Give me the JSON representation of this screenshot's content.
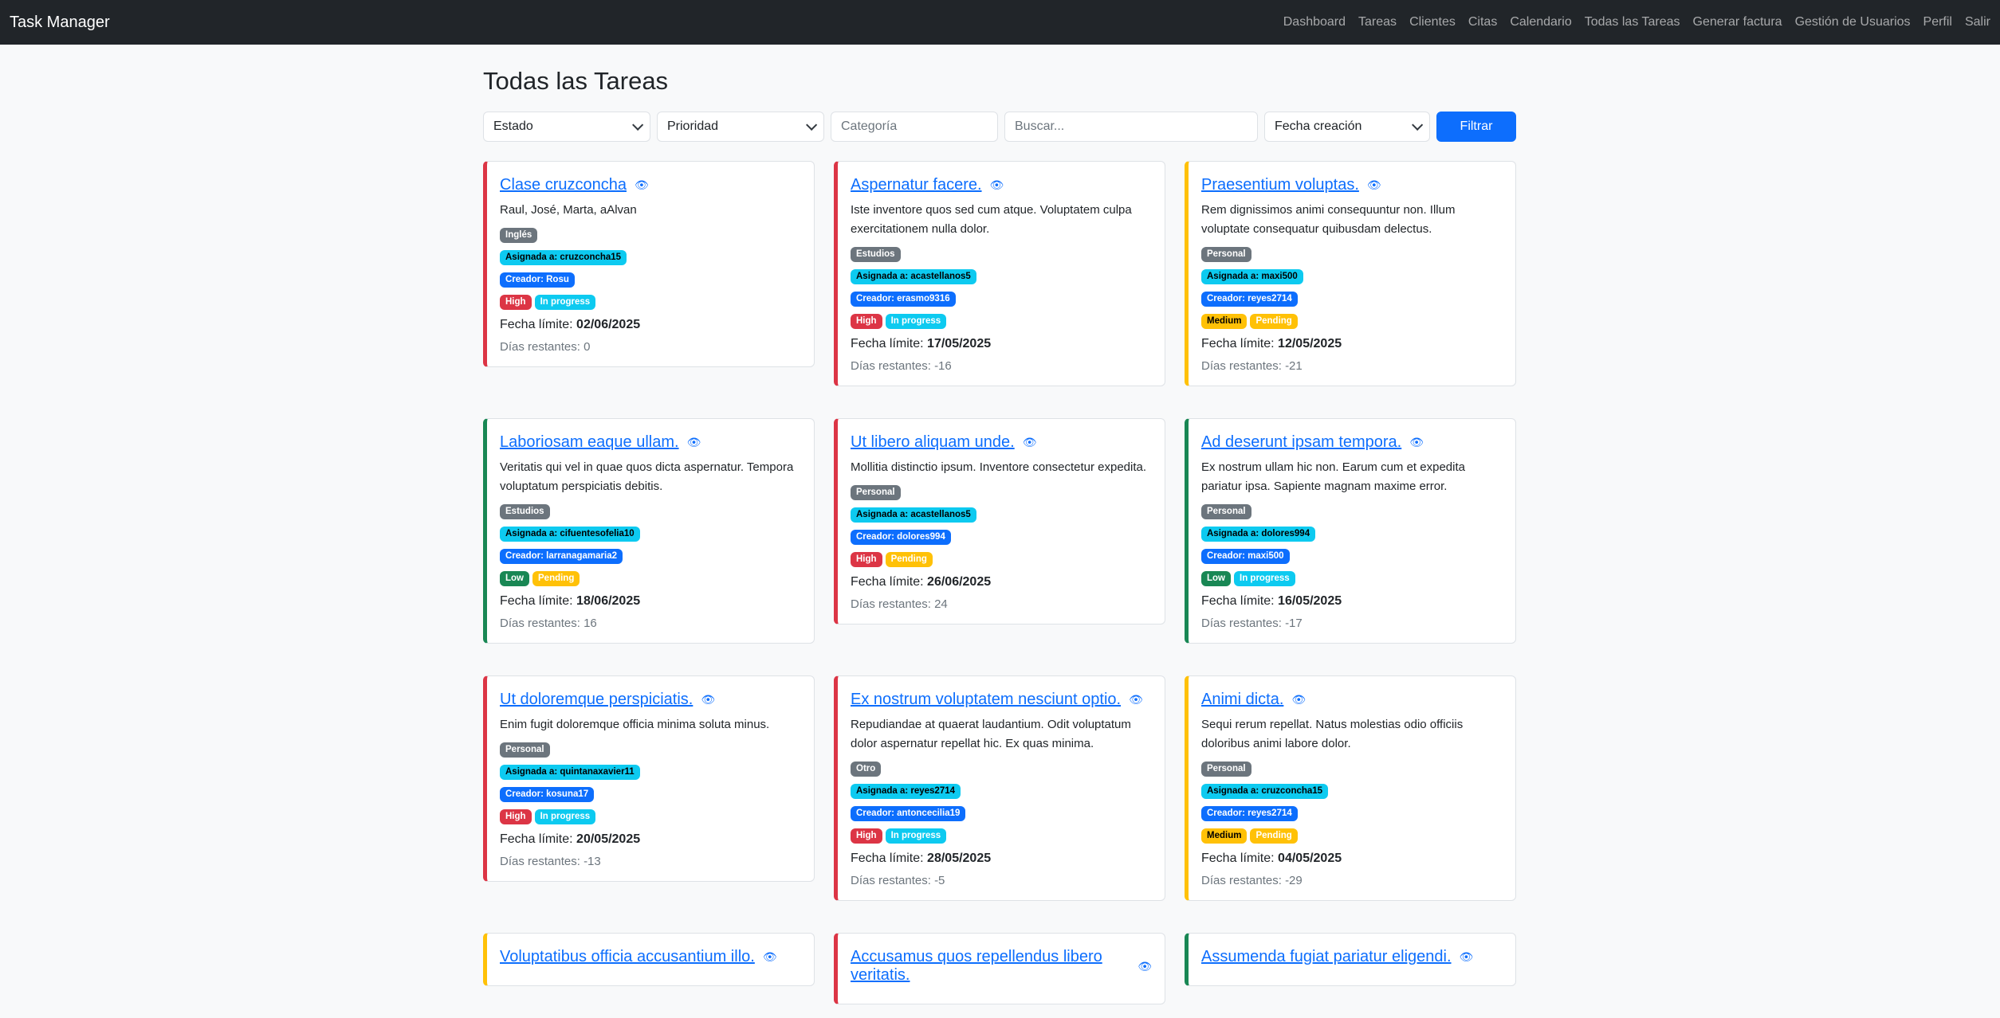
{
  "nav": {
    "brand": "Task Manager",
    "links": [
      "Dashboard",
      "Tareas",
      "Clientes",
      "Citas",
      "Calendario",
      "Todas las Tareas",
      "Generar factura",
      "Gestión de Usuarios",
      "Perfil",
      "Salir"
    ]
  },
  "page": {
    "title": "Todas las Tareas"
  },
  "filters": {
    "estado": "Estado",
    "prioridad": "Prioridad",
    "categoria_placeholder": "Categoría",
    "buscar_placeholder": "Buscar...",
    "orden": "Fecha creación",
    "button": "Filtrar"
  },
  "labels": {
    "fecha_limite": "Fecha límite:",
    "dias_restantes": "Días restantes:"
  },
  "colors": {
    "high": "#dc3545",
    "medium": "#ffc107",
    "low": "#198754",
    "primary": "#0d6efd",
    "info": "#0dcaf0",
    "secondary": "#6c757d"
  },
  "tasks": [
    {
      "title": "Clase cruzconcha",
      "description": "Raul, José, Marta, aAlvan",
      "category": "Inglés",
      "assigned": "Asignada a: cruzconcha15",
      "creator": "Creador: Rosu",
      "priority": "High",
      "status": "In progress",
      "due": "02/06/2025",
      "days": "0"
    },
    {
      "title": "Aspernatur facere.",
      "description": "Iste inventore quos sed cum atque. Voluptatem culpa exercitationem nulla dolor.",
      "category": "Estudios",
      "assigned": "Asignada a: acastellanos5",
      "creator": "Creador: erasmo9316",
      "priority": "High",
      "status": "In progress",
      "due": "17/05/2025",
      "days": "-16"
    },
    {
      "title": "Praesentium voluptas.",
      "description": "Rem dignissimos animi consequuntur non. Illum voluptate consequatur quibusdam delectus.",
      "category": "Personal",
      "assigned": "Asignada a: maxi500",
      "creator": "Creador: reyes2714",
      "priority": "Medium",
      "status": "Pending",
      "due": "12/05/2025",
      "days": "-21"
    },
    {
      "title": "Laboriosam eaque ullam.",
      "description": "Veritatis qui vel in quae quos dicta aspernatur. Tempora voluptatum perspiciatis debitis.",
      "category": "Estudios",
      "assigned": "Asignada a: cifuentesofelia10",
      "creator": "Creador: larranagamaria2",
      "priority": "Low",
      "status": "Pending",
      "due": "18/06/2025",
      "days": "16"
    },
    {
      "title": "Ut libero aliquam unde.",
      "description": "Mollitia distinctio ipsum. Inventore consectetur expedita.",
      "category": "Personal",
      "assigned": "Asignada a: acastellanos5",
      "creator": "Creador: dolores994",
      "priority": "High",
      "status": "Pending",
      "due": "26/06/2025",
      "days": "24"
    },
    {
      "title": "Ad deserunt ipsam tempora.",
      "description": "Ex nostrum ullam hic non. Earum cum et expedita pariatur ipsa. Sapiente magnam maxime error.",
      "category": "Personal",
      "assigned": "Asignada a: dolores994",
      "creator": "Creador: maxi500",
      "priority": "Low",
      "status": "In progress",
      "due": "16/05/2025",
      "days": "-17"
    },
    {
      "title": "Ut doloremque perspiciatis.",
      "description": "Enim fugit doloremque officia minima soluta minus.",
      "category": "Personal",
      "assigned": "Asignada a: quintanaxavier11",
      "creator": "Creador: kosuna17",
      "priority": "High",
      "status": "In progress",
      "due": "20/05/2025",
      "days": "-13"
    },
    {
      "title": "Ex nostrum voluptatem nesciunt optio.",
      "description": "Repudiandae at quaerat laudantium. Odit voluptatum dolor aspernatur repellat hic. Ex quas minima.",
      "category": "Otro",
      "assigned": "Asignada a: reyes2714",
      "creator": "Creador: antoncecilia19",
      "priority": "High",
      "status": "In progress",
      "due": "28/05/2025",
      "days": "-5"
    },
    {
      "title": "Animi dicta.",
      "description": "Sequi rerum repellat. Natus molestias odio officiis doloribus animi labore dolor.",
      "category": "Personal",
      "assigned": "Asignada a: cruzconcha15",
      "creator": "Creador: reyes2714",
      "priority": "Medium",
      "status": "Pending",
      "due": "04/05/2025",
      "days": "-29"
    },
    {
      "title": "Voluptatibus officia accusantium illo.",
      "description": "",
      "category": "",
      "assigned": "",
      "creator": "",
      "priority": "Medium",
      "status": "",
      "due": "",
      "days": ""
    },
    {
      "title": "Accusamus quos repellendus libero veritatis.",
      "description": "",
      "category": "",
      "assigned": "",
      "creator": "",
      "priority": "High",
      "status": "",
      "due": "",
      "days": ""
    },
    {
      "title": "Assumenda fugiat pariatur eligendi.",
      "description": "",
      "category": "",
      "assigned": "",
      "creator": "",
      "priority": "Low",
      "status": "",
      "due": "",
      "days": ""
    }
  ]
}
